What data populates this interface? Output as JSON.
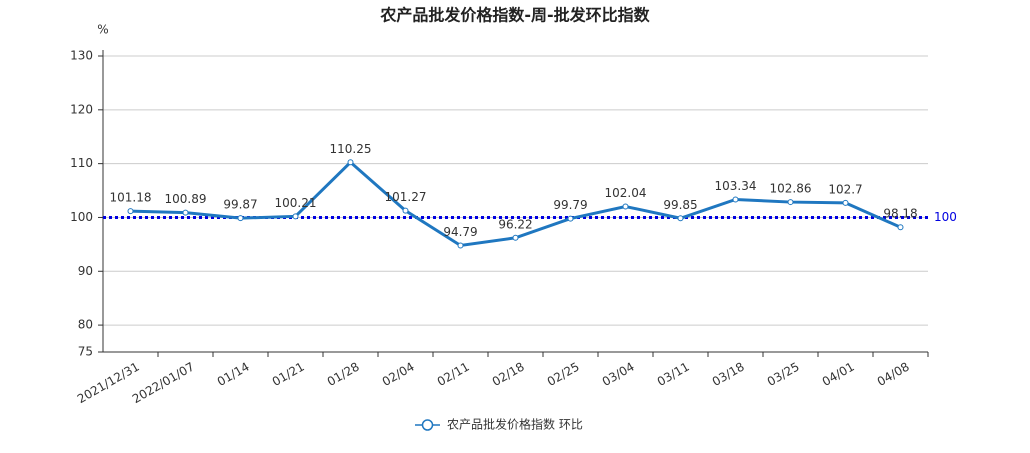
{
  "chart_data": {
    "type": "line",
    "title": "农产品批发价格指数-周-批发环比指数",
    "y_unit": "%",
    "categories": [
      "2021/12/31",
      "2022/01/07",
      "01/14",
      "01/21",
      "01/28",
      "02/04",
      "02/11",
      "02/18",
      "02/25",
      "03/04",
      "03/11",
      "03/18",
      "03/25",
      "04/01",
      "04/08"
    ],
    "series": [
      {
        "name": "农产品批发价格指数  环比",
        "color": "#1f77c0",
        "values": [
          101.18,
          100.89,
          99.87,
          100.21,
          110.25,
          101.27,
          94.79,
          96.22,
          99.79,
          102.04,
          99.85,
          103.34,
          102.86,
          102.7,
          98.18
        ]
      }
    ],
    "reference_line": {
      "value": 100,
      "color": "#0000e0"
    },
    "ylim": [
      75,
      130
    ],
    "yticks": [
      75,
      80,
      90,
      100,
      110,
      120,
      130
    ],
    "grid": true
  }
}
